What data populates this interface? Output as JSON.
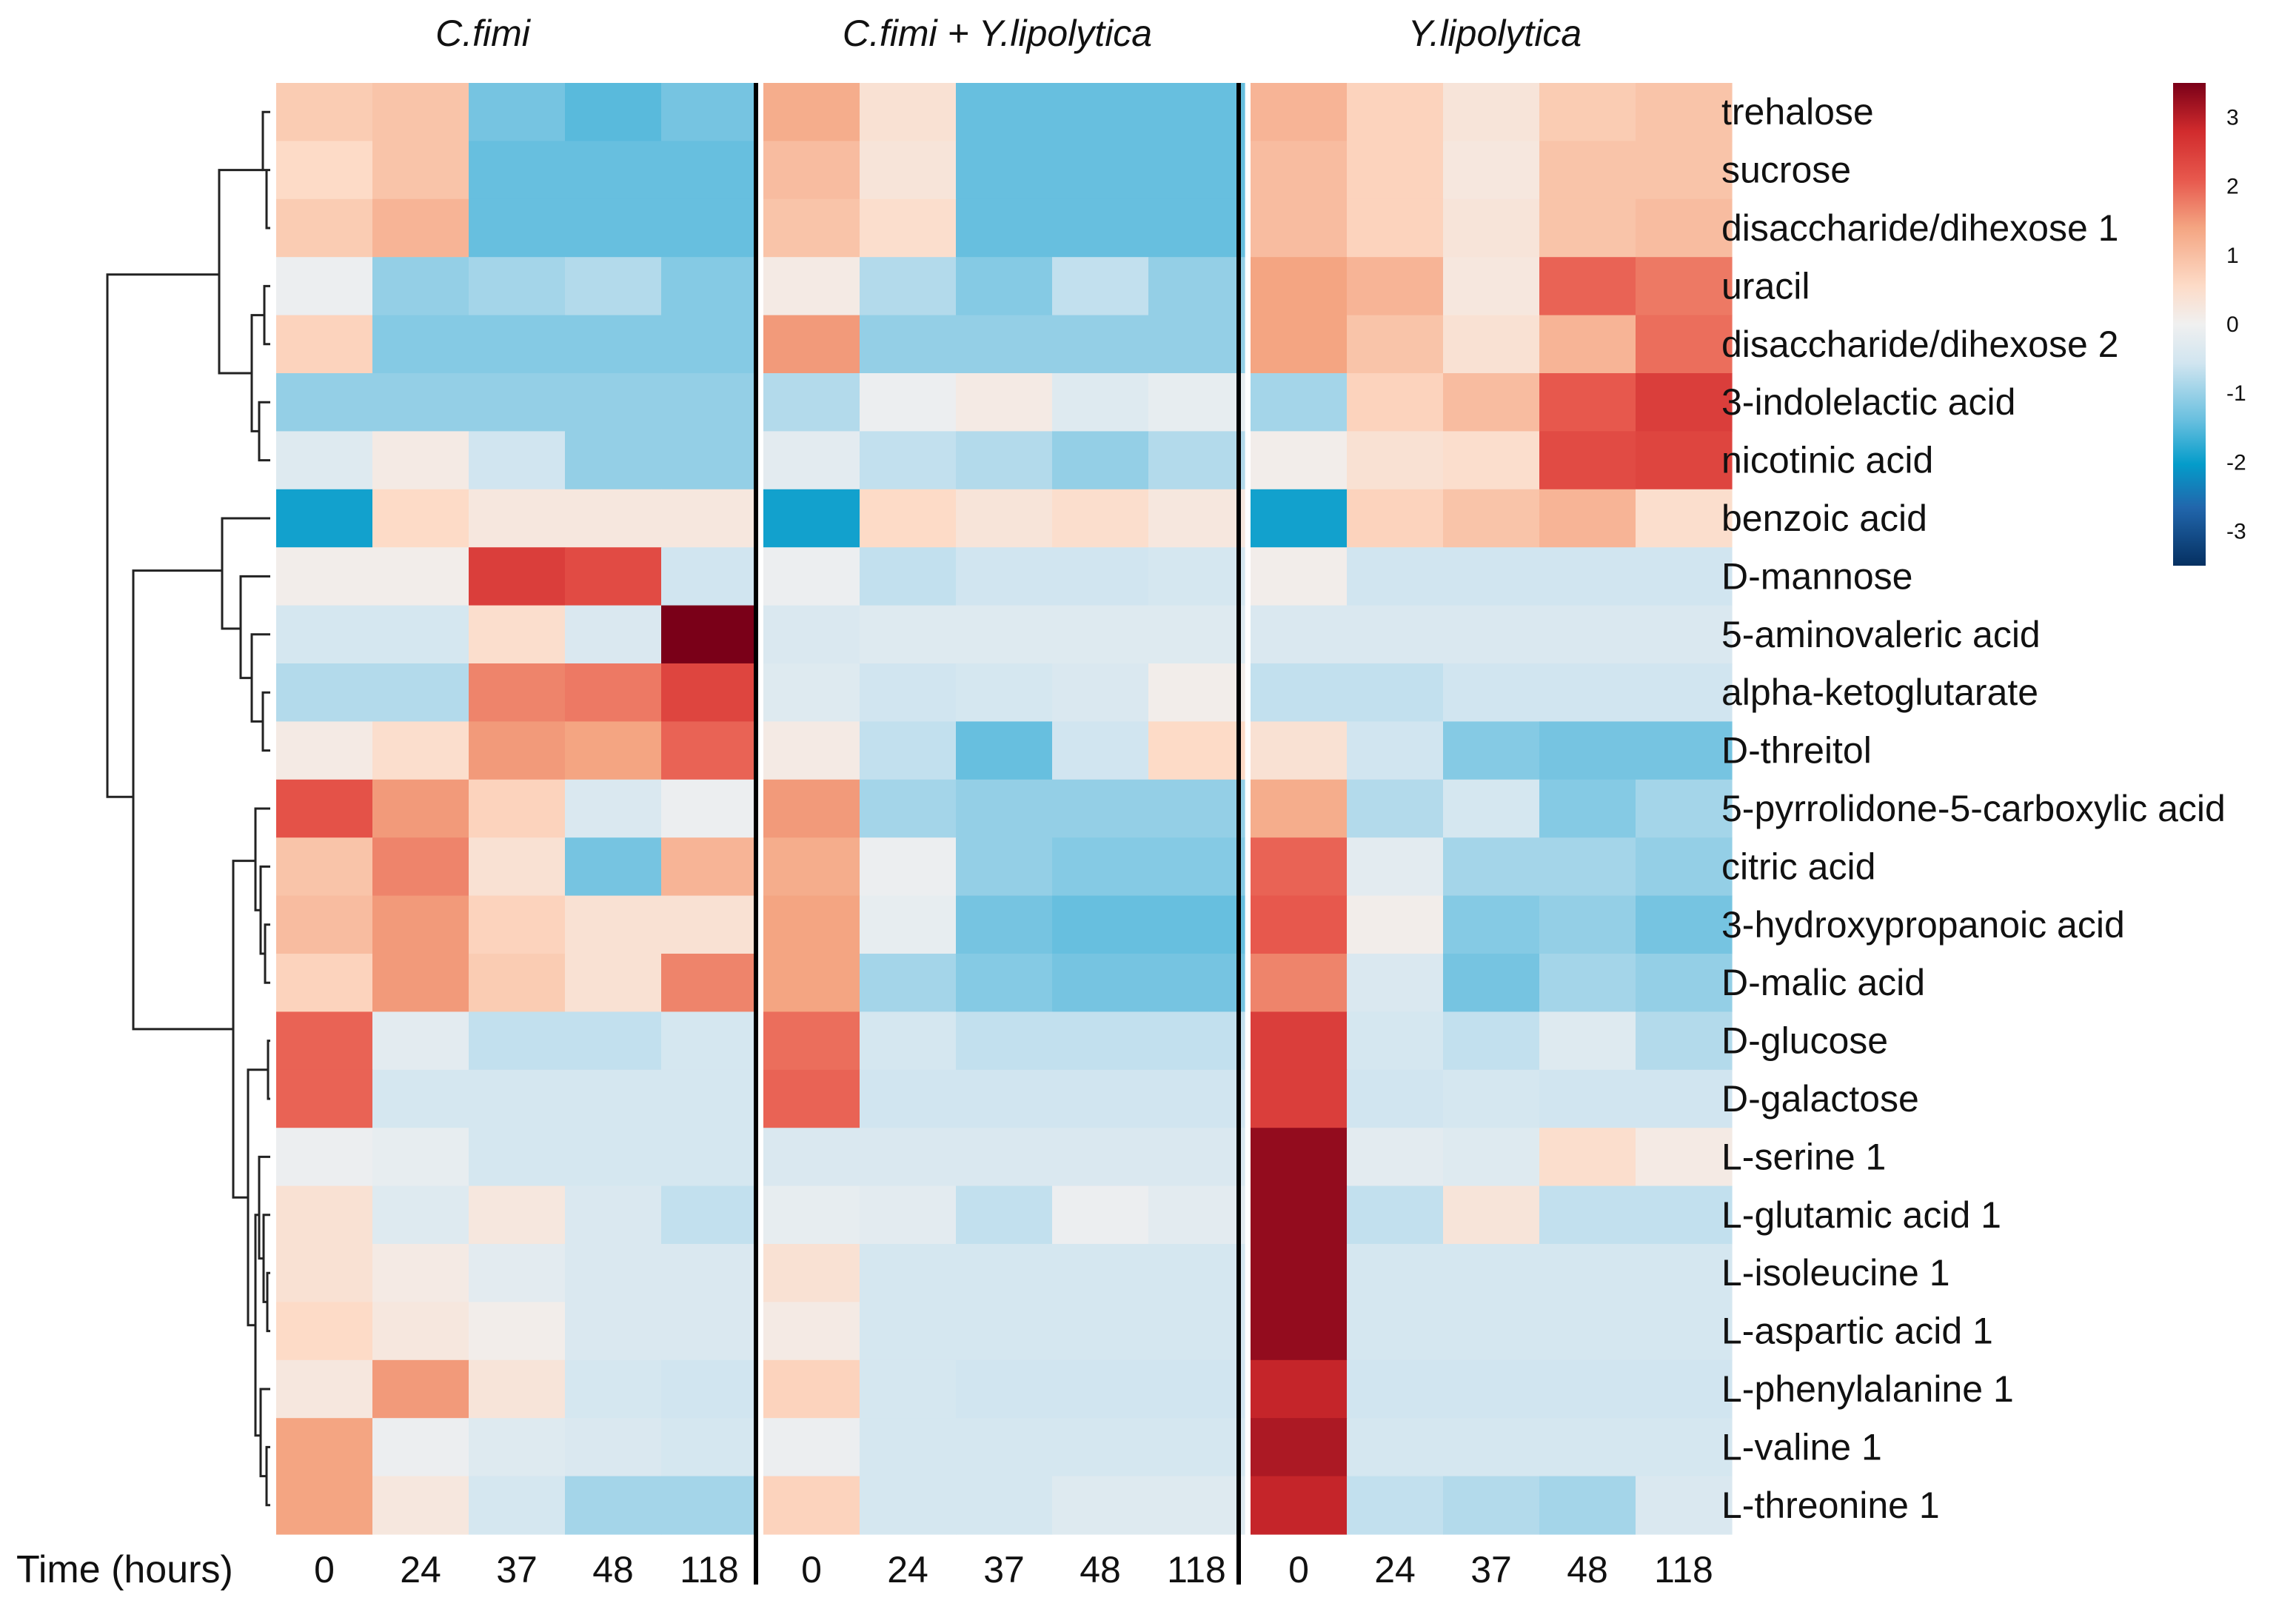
{
  "chart_data": {
    "type": "heatmap",
    "xlabel": "Time (hours)",
    "groups": [
      {
        "name": "C.fimi",
        "times": [
          "0",
          "24",
          "37",
          "48",
          "118"
        ]
      },
      {
        "name": "C.fimi + Y.lipolytica",
        "times": [
          "0",
          "24",
          "37",
          "48",
          "118"
        ]
      },
      {
        "name": "Y.lipolytica",
        "times": [
          "0",
          "24",
          "37",
          "48",
          "118"
        ]
      }
    ],
    "rows": [
      "trehalose",
      "sucrose",
      "disaccharide/dihexose 1",
      "uracil",
      "disaccharide/dihexose 2",
      "3-indolelactic acid",
      "nicotinic acid",
      "benzoic acid",
      "D-mannose",
      "5-aminovaleric acid",
      "alpha-ketoglutarate",
      "D-threitol",
      "5-pyrrolidone-5-carboxylic acid",
      "citric acid",
      "3-hydroxypropanoic acid",
      "D-malic acid",
      "D-glucose",
      "D-galactose",
      "L-serine 1",
      "L-glutamic acid 1",
      "L-isoleucine 1",
      "L-aspartic acid 1",
      "L-phenylalanine 1",
      "L-valine 1",
      "L-threonine 1"
    ],
    "values": [
      [
        0.9,
        1.0,
        -1.3,
        -1.5,
        -1.3,
        1.3,
        0.5,
        -1.4,
        -1.4,
        -1.4,
        1.2,
        0.8,
        0.4,
        0.9,
        1.0
      ],
      [
        0.7,
        1.0,
        -1.4,
        -1.4,
        -1.4,
        1.1,
        0.4,
        -1.4,
        -1.4,
        -1.4,
        1.1,
        0.8,
        0.3,
        1.0,
        1.0
      ],
      [
        0.9,
        1.2,
        -1.4,
        -1.4,
        -1.4,
        1.0,
        0.6,
        -1.4,
        -1.4,
        -1.4,
        1.1,
        0.8,
        0.4,
        1.0,
        1.1
      ],
      [
        -0.1,
        -1.1,
        -1.0,
        -0.9,
        -1.2,
        0.2,
        -0.9,
        -1.2,
        -0.8,
        -1.1,
        1.4,
        1.2,
        0.3,
        2.0,
        1.8
      ],
      [
        0.8,
        -1.2,
        -1.2,
        -1.2,
        -1.2,
        1.5,
        -1.1,
        -1.1,
        -1.1,
        -1.1,
        1.4,
        1.0,
        0.5,
        1.2,
        1.9
      ],
      [
        -1.1,
        -1.1,
        -1.1,
        -1.1,
        -1.1,
        -0.9,
        -0.1,
        0.2,
        -0.4,
        -0.2,
        -1.0,
        0.8,
        1.1,
        2.1,
        2.5
      ],
      [
        -0.4,
        0.2,
        -0.7,
        -1.1,
        -1.1,
        -0.3,
        -0.8,
        -0.9,
        -1.1,
        -0.9,
        0.1,
        0.5,
        0.6,
        2.3,
        2.4
      ],
      [
        -2.0,
        0.7,
        0.3,
        0.3,
        0.3,
        -2.0,
        0.7,
        0.4,
        0.6,
        0.3,
        -2.0,
        0.8,
        1.0,
        1.2,
        0.6
      ],
      [
        0.1,
        0.1,
        2.5,
        2.3,
        -0.7,
        -0.1,
        -0.8,
        -0.7,
        -0.7,
        -0.6,
        0.1,
        -0.7,
        -0.7,
        -0.7,
        -0.7
      ],
      [
        -0.6,
        -0.6,
        0.6,
        -0.5,
        3.5,
        -0.5,
        -0.4,
        -0.4,
        -0.4,
        -0.4,
        -0.5,
        -0.5,
        -0.5,
        -0.5,
        -0.5
      ],
      [
        -0.9,
        -0.9,
        1.7,
        1.8,
        2.4,
        -0.4,
        -0.7,
        -0.6,
        -0.5,
        0.1,
        -0.8,
        -0.8,
        -0.7,
        -0.7,
        -0.7
      ],
      [
        0.2,
        0.6,
        1.5,
        1.4,
        2.0,
        0.2,
        -0.8,
        -1.4,
        -0.7,
        0.7,
        0.5,
        -0.7,
        -1.2,
        -1.3,
        -1.3
      ],
      [
        2.2,
        1.5,
        0.8,
        -0.5,
        -0.1,
        1.5,
        -1.0,
        -1.1,
        -1.1,
        -1.1,
        1.3,
        -0.9,
        -0.6,
        -1.2,
        -1.0
      ],
      [
        1.0,
        1.7,
        0.5,
        -1.3,
        1.2,
        1.3,
        -0.1,
        -1.1,
        -1.2,
        -1.2,
        2.0,
        -0.3,
        -1.0,
        -1.0,
        -1.1
      ],
      [
        1.1,
        1.5,
        0.8,
        0.5,
        0.5,
        1.4,
        -0.2,
        -1.3,
        -1.4,
        -1.4,
        2.1,
        0.1,
        -1.2,
        -1.1,
        -1.3
      ],
      [
        0.8,
        1.5,
        0.9,
        0.5,
        1.7,
        1.4,
        -1.0,
        -1.2,
        -1.3,
        -1.3,
        1.7,
        -0.5,
        -1.3,
        -1.0,
        -1.1
      ],
      [
        2.0,
        -0.3,
        -0.8,
        -0.8,
        -0.6,
        1.9,
        -0.6,
        -0.8,
        -0.8,
        -0.8,
        2.5,
        -0.6,
        -0.8,
        -0.4,
        -0.9
      ],
      [
        2.0,
        -0.6,
        -0.6,
        -0.6,
        -0.6,
        2.0,
        -0.7,
        -0.7,
        -0.7,
        -0.7,
        2.5,
        -0.7,
        -0.6,
        -0.7,
        -0.7
      ],
      [
        -0.1,
        -0.2,
        -0.6,
        -0.6,
        -0.6,
        -0.5,
        -0.5,
        -0.5,
        -0.5,
        -0.5,
        3.3,
        -0.3,
        -0.4,
        0.6,
        0.2
      ],
      [
        0.5,
        -0.4,
        0.3,
        -0.5,
        -0.8,
        -0.2,
        -0.3,
        -0.8,
        -0.1,
        -0.3,
        3.3,
        -0.8,
        0.4,
        -0.8,
        -0.8
      ],
      [
        0.5,
        0.2,
        -0.3,
        -0.5,
        -0.5,
        0.5,
        -0.6,
        -0.6,
        -0.6,
        -0.6,
        3.3,
        -0.6,
        -0.6,
        -0.6,
        -0.6
      ],
      [
        0.7,
        0.3,
        0.1,
        -0.5,
        -0.5,
        0.2,
        -0.6,
        -0.6,
        -0.6,
        -0.6,
        3.3,
        -0.6,
        -0.6,
        -0.6,
        -0.6
      ],
      [
        0.3,
        1.5,
        0.4,
        -0.6,
        -0.7,
        0.8,
        -0.6,
        -0.7,
        -0.7,
        -0.7,
        2.9,
        -0.7,
        -0.7,
        -0.7,
        -0.7
      ],
      [
        1.4,
        -0.1,
        -0.4,
        -0.5,
        -0.6,
        -0.1,
        -0.6,
        -0.6,
        -0.6,
        -0.6,
        3.1,
        -0.6,
        -0.6,
        -0.6,
        -0.6
      ],
      [
        1.4,
        0.3,
        -0.6,
        -1.0,
        -1.0,
        0.8,
        -0.6,
        -0.6,
        -0.4,
        -0.4,
        2.9,
        -0.8,
        -0.9,
        -1.0,
        -0.5
      ]
    ],
    "colorbar": {
      "range": [
        -3.5,
        3.5
      ],
      "ticks": [
        "3",
        "2",
        "1",
        "0",
        "-1",
        "-2",
        "-3"
      ],
      "colors": [
        "#053061",
        "#2166ac",
        "#049cca",
        "#67bfdf",
        "#d1e5f0",
        "#f0f0f0",
        "#fddbc7",
        "#f4a582",
        "#e7584d",
        "#d12b2d",
        "#7a0018"
      ]
    },
    "dendrogram": "row clustering (left)",
    "grid": false,
    "legend": "right"
  }
}
